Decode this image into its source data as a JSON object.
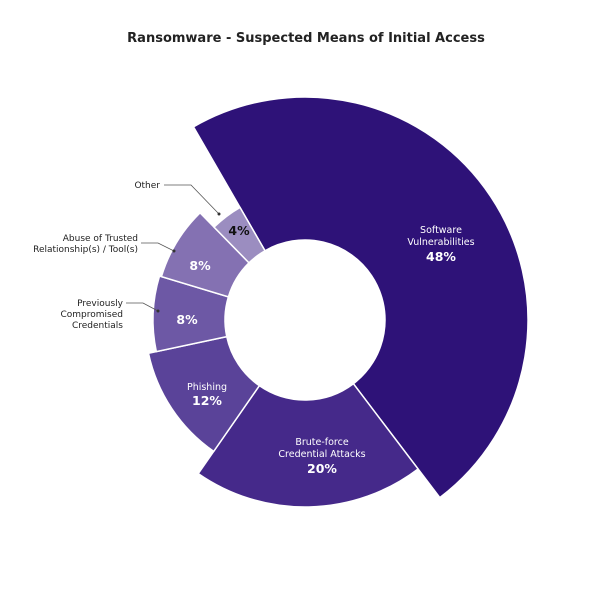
{
  "chart_data": {
    "type": "pie",
    "variant": "donut",
    "title": "Ransomware - Suspected Means of Initial Access",
    "slices": [
      {
        "label": "Software Vulnerabilities",
        "value": 48,
        "display": "48%",
        "color": "#2e1278"
      },
      {
        "label": "Brute-force Credential Attacks",
        "value": 20,
        "display": "20%",
        "color": "#45298a"
      },
      {
        "label": "Phishing",
        "value": 12,
        "display": "12%",
        "color": "#5a4399"
      },
      {
        "label": "Previously Compromised Credentials",
        "value": 8,
        "display": "8%",
        "color": "#6d58a5"
      },
      {
        "label": "Abuse of Trusted Relationship(s) / Tool(s)",
        "value": 8,
        "display": "8%",
        "color": "#8471b2"
      },
      {
        "label": "Other",
        "value": 4,
        "display": "4%",
        "color": "#9b8dc0"
      }
    ],
    "label_lines": {
      "software": [
        "Software",
        "Vulnerabilities"
      ],
      "brute": [
        "Brute-force",
        "Credential Attacks"
      ],
      "phishing": [
        "Phishing"
      ],
      "previously": [
        "Previously",
        "Compromised",
        "Credentials"
      ],
      "abuse": [
        "Abuse of Trusted",
        "Relationship(s) / Tool(s)"
      ],
      "other": [
        "Other"
      ]
    }
  }
}
